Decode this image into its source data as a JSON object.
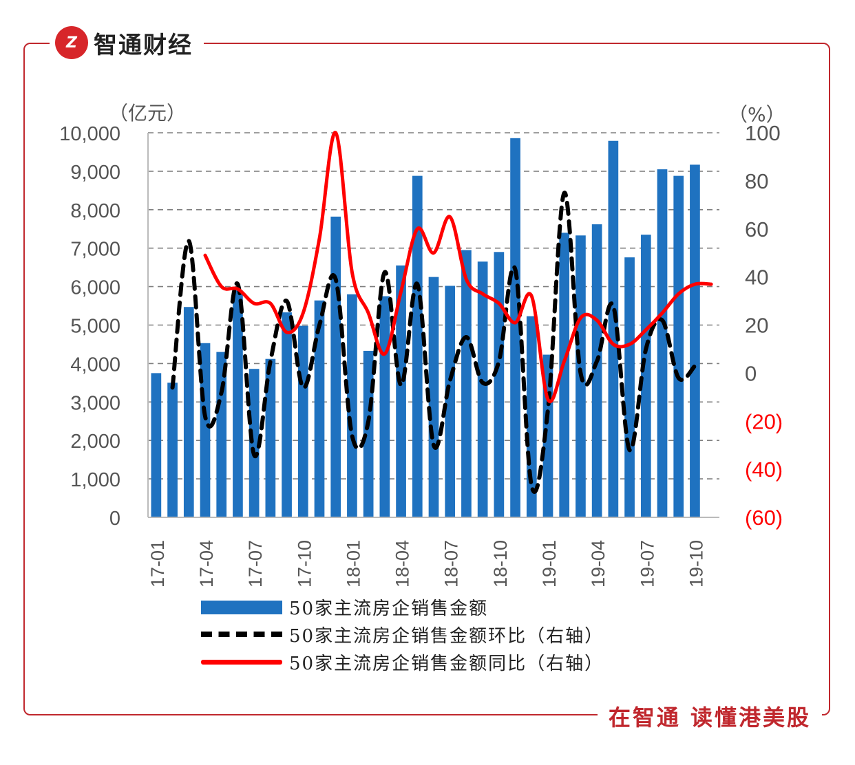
{
  "brand": {
    "logo_text": "Z",
    "name": "智通财经"
  },
  "slogan": "在智通 读懂港美股",
  "chart_data": {
    "type": "bar",
    "left_axis": {
      "unit": "（亿元）",
      "ylim": [
        0,
        10000
      ],
      "ticks": [
        "0",
        "1,000",
        "2,000",
        "3,000",
        "4,000",
        "5,000",
        "6,000",
        "7,000",
        "8,000",
        "9,000",
        "10,000"
      ]
    },
    "right_axis": {
      "unit": "（%）",
      "ylim": [
        -60,
        100
      ],
      "ticks": [
        "(60)",
        "(40)",
        "(20)",
        "0",
        "20",
        "40",
        "60",
        "80",
        "100"
      ]
    },
    "x_tick_labels": [
      "17-01",
      "17-04",
      "17-07",
      "17-10",
      "18-01",
      "18-04",
      "18-07",
      "18-10",
      "19-01",
      "19-04",
      "19-07",
      "19-10"
    ],
    "categories": [
      "17-01",
      "17-02",
      "17-03",
      "17-04",
      "17-05",
      "17-06",
      "17-07",
      "17-08",
      "17-09",
      "17-10",
      "17-11",
      "17-12",
      "18-01",
      "18-02",
      "18-03",
      "18-04",
      "18-05",
      "18-06",
      "18-07",
      "18-08",
      "18-09",
      "18-10",
      "18-11",
      "18-12",
      "19-01",
      "19-02",
      "19-03",
      "19-04",
      "19-05",
      "19-06",
      "19-07",
      "19-08",
      "19-09",
      "19-10",
      "19-11"
    ],
    "series": [
      {
        "name": "50家主流房企销售金额",
        "type": "bar",
        "axis": "left",
        "color": "#1f72c0",
        "values": [
          3750,
          3500,
          5470,
          4530,
          4300,
          5900,
          3860,
          4120,
          5330,
          4980,
          5640,
          7820,
          5800,
          4330,
          5750,
          6550,
          8880,
          6250,
          6020,
          6950,
          6650,
          6900,
          9860,
          5230,
          4230,
          7400,
          7330,
          7620,
          9790,
          6760,
          7350,
          9050,
          8880,
          9170,
          null
        ]
      },
      {
        "name": "50家主流房企销售金额环比（右轴）",
        "type": "line",
        "axis": "right",
        "color": "#000000",
        "dash": true,
        "values": [
          null,
          -6,
          55,
          -18,
          -8,
          37,
          -34,
          5,
          30,
          -6,
          20,
          39,
          -26,
          -20,
          42,
          -5,
          37,
          -30,
          -3,
          15,
          -4,
          5,
          43,
          -47,
          -15,
          75,
          0,
          5,
          28,
          -32,
          10,
          22,
          -2,
          3,
          null
        ]
      },
      {
        "name": "50家主流房企销售金额同比（右轴）",
        "type": "line",
        "axis": "right",
        "color": "#ff0000",
        "dash": false,
        "values": [
          null,
          null,
          null,
          49,
          36,
          35,
          29,
          29,
          17,
          25,
          56,
          108,
          42,
          25,
          8,
          34,
          60,
          50,
          65,
          39,
          33,
          29,
          21,
          32,
          -11,
          5,
          23,
          22,
          12,
          12,
          18,
          25,
          33,
          37,
          37
        ]
      }
    ]
  }
}
